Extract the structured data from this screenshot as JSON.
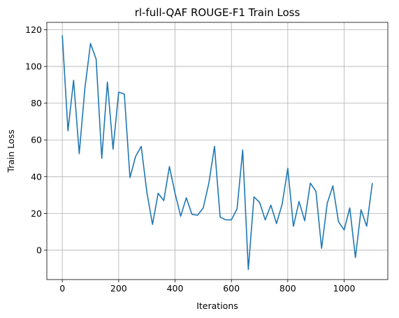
{
  "chart_data": {
    "type": "line",
    "title": "rl-full-QAF ROUGE-F1 Train Loss",
    "xlabel": "Iterations",
    "ylabel": "Train Loss",
    "xlim": [
      -55,
      1155
    ],
    "ylim": [
      -16,
      124
    ],
    "xticks": [
      0,
      200,
      400,
      600,
      800,
      1000
    ],
    "yticks": [
      0,
      20,
      40,
      60,
      80,
      100,
      120
    ],
    "xtick_labels": [
      "0",
      "200",
      "400",
      "600",
      "800",
      "1000"
    ],
    "ytick_labels": [
      "0",
      "20",
      "40",
      "60",
      "80",
      "100",
      "120"
    ],
    "grid": true,
    "series": [
      {
        "color": "#1f77b4",
        "x": [
          0,
          20,
          40,
          60,
          80,
          100,
          120,
          140,
          160,
          180,
          200,
          220,
          240,
          260,
          280,
          300,
          320,
          340,
          360,
          380,
          400,
          420,
          440,
          460,
          480,
          500,
          520,
          540,
          560,
          580,
          600,
          620,
          640,
          660,
          680,
          700,
          720,
          740,
          760,
          780,
          800,
          820,
          840,
          860,
          880,
          900,
          920,
          940,
          960,
          980,
          1000,
          1020,
          1040,
          1060,
          1080,
          1100
        ],
        "y": [
          117,
          65,
          92.5,
          52.5,
          88,
          112.5,
          104,
          50,
          91.5,
          55,
          86,
          85,
          39.5,
          51,
          56.5,
          31.5,
          14,
          31,
          27,
          45.5,
          31,
          18.5,
          28.5,
          19.5,
          19,
          23,
          36.5,
          56.5,
          18,
          16.5,
          16.5,
          22.5,
          54.5,
          -10.5,
          29,
          26,
          16.5,
          24.5,
          14.5,
          25,
          44.5,
          13,
          26.5,
          16,
          36.5,
          32,
          1,
          25.5,
          35,
          15.5,
          11,
          23,
          -4,
          22,
          13,
          36.5
        ]
      }
    ]
  }
}
